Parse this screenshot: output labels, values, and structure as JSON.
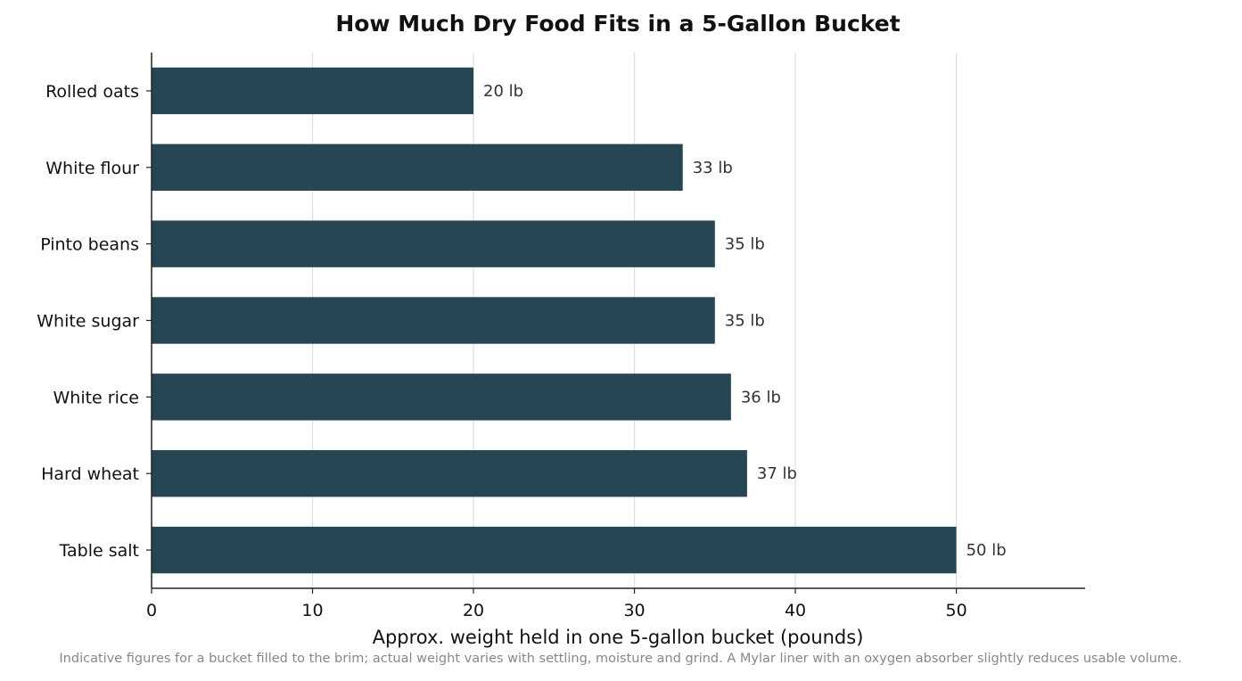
{
  "chart_data": {
    "type": "bar",
    "orientation": "horizontal",
    "title": "How Much Dry Food Fits in a 5-Gallon Bucket",
    "xlabel": "Approx. weight held in one 5-gallon bucket (pounds)",
    "ylabel": "",
    "categories": [
      "Rolled oats",
      "White flour",
      "Pinto beans",
      "White sugar",
      "White rice",
      "Hard wheat",
      "Table salt"
    ],
    "values": [
      20,
      33,
      35,
      35,
      36,
      37,
      50
    ],
    "value_labels": [
      "20 lb",
      "33 lb",
      "35 lb",
      "35 lb",
      "36 lb",
      "37 lb",
      "50 lb"
    ],
    "xlim": [
      0,
      58
    ],
    "xticks": [
      0,
      10,
      20,
      30,
      40,
      50
    ],
    "grid": "vertical",
    "bar_color": "#264653",
    "footnote": "Indicative figures for a bucket filled to the brim; actual weight varies with settling, moisture and grind. A Mylar liner with an oxygen absorber slightly reduces usable volume."
  }
}
